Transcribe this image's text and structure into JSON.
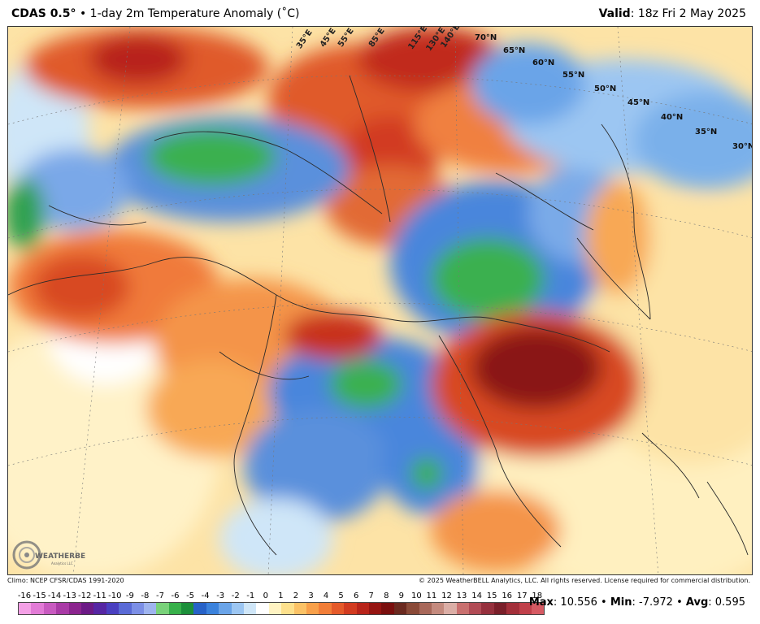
{
  "header": {
    "model": "CDAS 0.5",
    "degree": "°",
    "description": " • 1-day 2m Temperature Anomaly (˚C)",
    "valid_label": "Valid",
    "valid_value": ": 18z Fri 2 May 2025"
  },
  "map": {
    "latitude_labels": [
      "70°N",
      "65°N",
      "60°N",
      "55°N",
      "50°N",
      "45°N",
      "40°N",
      "35°N",
      "30°N"
    ],
    "longitude_labels": [
      "35°E",
      "45°E",
      "55°E",
      "85°E",
      "115°E",
      "130°E",
      "140°E"
    ],
    "logo_text": "WEATHERBELL",
    "logo_subtext": "Analytics LLC"
  },
  "footer": {
    "climo": "Climo: NCEP CFSR/CDAS 1991-2020",
    "copyright": "© 2025 WeatherBELL Analytics, LLC. All rights reserved. License required for commercial distribution."
  },
  "colorbar": {
    "labels": [
      "-16",
      "-15",
      "-14",
      "-13",
      "-12",
      "-11",
      "-10",
      "-9",
      "-8",
      "-7",
      "-6",
      "-5",
      "-4",
      "-3",
      "-2",
      "-1",
      "0",
      "1",
      "2",
      "3",
      "4",
      "5",
      "6",
      "7",
      "8",
      "9",
      "10",
      "11",
      "12",
      "13",
      "14",
      "15",
      "16",
      "17",
      "18"
    ],
    "colors": [
      "#f4a0e6",
      "#e27bd6",
      "#c85ac0",
      "#a93aa6",
      "#8b248e",
      "#6c1a86",
      "#5626a3",
      "#4a3fc0",
      "#5a6ad6",
      "#7c8fe6",
      "#9fb4ef",
      "#79d27a",
      "#37b04a",
      "#1c8f3a",
      "#2762c8",
      "#3b82dc",
      "#6aa4e8",
      "#9cc6f2",
      "#cfe6f8",
      "#ffffff",
      "#fff3c2",
      "#fde08c",
      "#fbc266",
      "#f8a04a",
      "#f27e38",
      "#e55a2a",
      "#d23b20",
      "#b8241a",
      "#961512",
      "#7a0f0e",
      "#6b2a20",
      "#8a4a38",
      "#a8685a",
      "#c48a7e",
      "#dbaea6",
      "#c9706f",
      "#b14b55",
      "#96303d",
      "#7a1f2a",
      "#a32f3a",
      "#c0404a",
      "#d65a63"
    ]
  },
  "stats": {
    "max_label": "Max",
    "max_value": ": 10.556 • ",
    "min_label": "Min",
    "min_value": ": -7.972 • ",
    "avg_label": "Avg",
    "avg_value": ": 0.595"
  }
}
